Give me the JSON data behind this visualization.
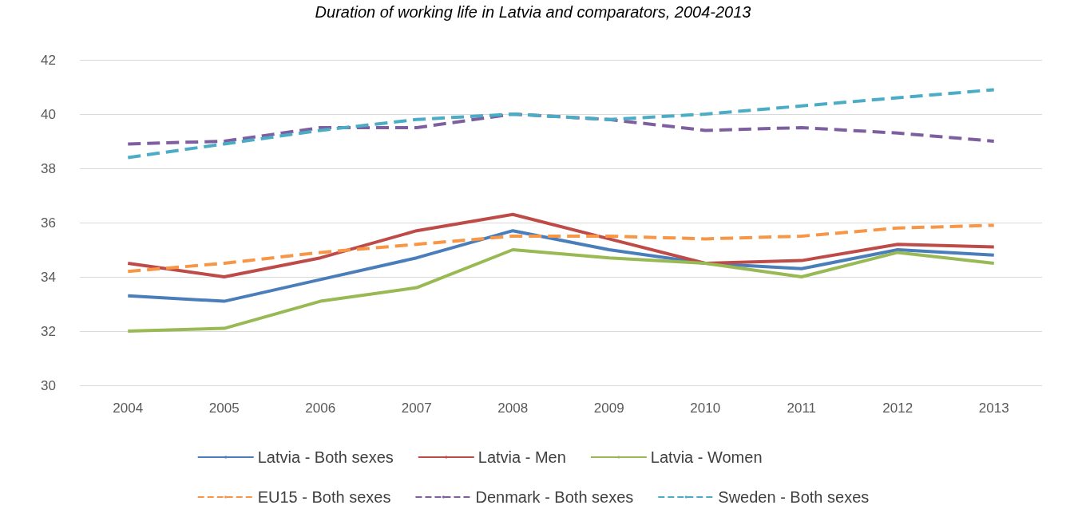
{
  "chart_data": {
    "type": "line",
    "title": "Duration of working life in Latvia and comparators, 2004-2013",
    "categories": [
      "2004",
      "2005",
      "2006",
      "2007",
      "2008",
      "2009",
      "2010",
      "2011",
      "2012",
      "2013"
    ],
    "series": [
      {
        "name": "Latvia - Both sexes",
        "color": "#4a7ebb",
        "line_style": "solid",
        "values": [
          33.3,
          33.1,
          33.9,
          34.7,
          35.7,
          35.0,
          34.5,
          34.3,
          35.0,
          34.8
        ]
      },
      {
        "name": "Latvia - Men",
        "color": "#be4b48",
        "line_style": "solid",
        "values": [
          34.5,
          34.0,
          34.7,
          35.7,
          36.3,
          35.4,
          34.5,
          34.6,
          35.2,
          35.1
        ]
      },
      {
        "name": "Latvia - Women",
        "color": "#98b954",
        "line_style": "solid",
        "values": [
          32.0,
          32.1,
          33.1,
          33.6,
          35.0,
          34.7,
          34.5,
          34.0,
          34.9,
          34.5
        ]
      },
      {
        "name": "EU15 - Both sexes",
        "color": "#f79646",
        "line_style": "dashed",
        "values": [
          34.2,
          34.5,
          34.9,
          35.2,
          35.5,
          35.5,
          35.4,
          35.5,
          35.8,
          35.9
        ]
      },
      {
        "name": "Denmark - Both sexes",
        "color": "#7d5fa0",
        "line_style": "dashed",
        "values": [
          38.9,
          39.0,
          39.5,
          39.5,
          40.0,
          39.8,
          39.4,
          39.5,
          39.3,
          39.0
        ]
      },
      {
        "name": "Sweden - Both sexes",
        "color": "#4bacc6",
        "line_style": "dashed",
        "values": [
          38.4,
          38.9,
          39.4,
          39.8,
          40.0,
          39.8,
          40.0,
          40.3,
          40.6,
          40.9
        ]
      }
    ],
    "ylim": [
      30,
      42
    ],
    "yticks": [
      30,
      32,
      34,
      36,
      38,
      40,
      42
    ],
    "grid": "y",
    "legend": "bottom",
    "marker": "none"
  }
}
